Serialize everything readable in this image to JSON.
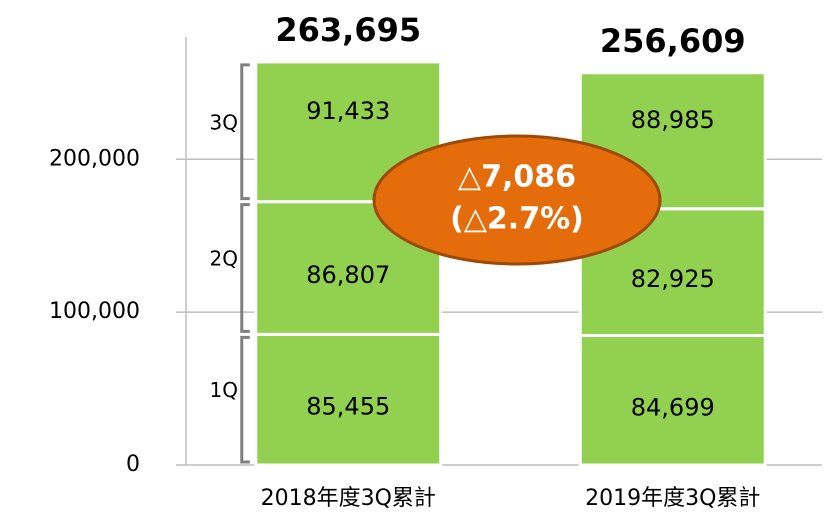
{
  "chart_data": {
    "type": "stacked_bar",
    "categories": [
      "2018年度3Q累計",
      "2019年度3Q累計"
    ],
    "series": [
      {
        "name": "1Q",
        "color": "#92d050",
        "values": [
          85455,
          84699
        ],
        "value_labels": [
          "85,455",
          "84,699"
        ]
      },
      {
        "name": "2Q",
        "color": "#92d050",
        "values": [
          86807,
          82925
        ],
        "value_labels": [
          "86,807",
          "82,925"
        ]
      },
      {
        "name": "3Q",
        "color": "#92d050",
        "values": [
          91433,
          88985
        ],
        "value_labels": [
          "91,433",
          "88,985"
        ]
      }
    ],
    "totals": [
      263695,
      256609
    ],
    "total_labels": [
      "263,695",
      "256,609"
    ],
    "annotation": [
      "△7,086",
      "(△2.7%)"
    ],
    "annotation_color": "#e46c0a",
    "ylim": [
      0,
      280000
    ],
    "yticks": [
      0,
      {
        "value": 100000,
        "label": "100,000"
      },
      {
        "value": 200000,
        "label": "200,000"
      }
    ],
    "grid": true
  }
}
